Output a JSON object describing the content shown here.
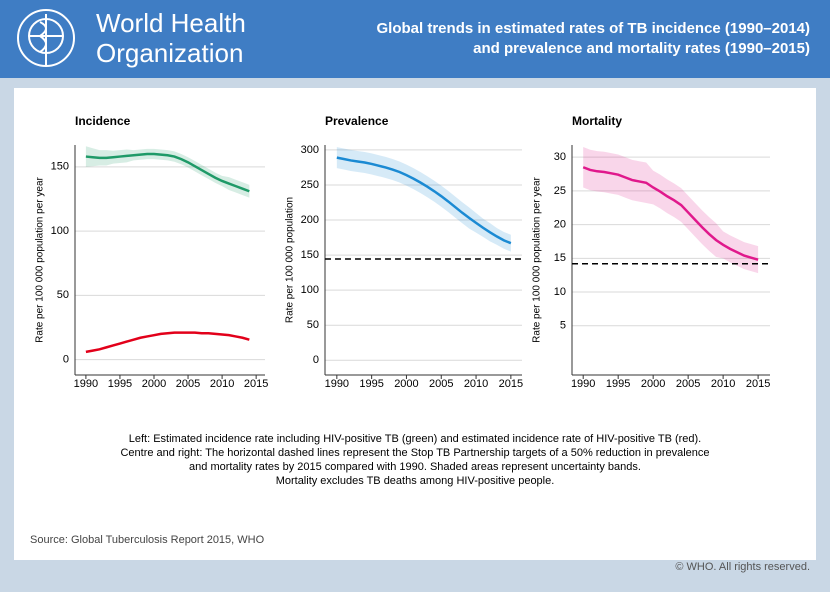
{
  "header": {
    "logo": [
      "World Health",
      "Organization"
    ],
    "title": [
      "Global trends in estimated rates of TB incidence (1990–2014)",
      "and prevalence and mortality rates (1990–2015)"
    ]
  },
  "chart_data": [
    {
      "type": "line",
      "title": "Incidence",
      "y_label": "Rate per 100 000 population per year",
      "x": [
        1990,
        1991,
        1992,
        1993,
        1994,
        1995,
        1996,
        1997,
        1998,
        1999,
        2000,
        2001,
        2002,
        2003,
        2004,
        2005,
        2006,
        2007,
        2008,
        2009,
        2010,
        2011,
        2012,
        2013,
        2014
      ],
      "xlim": [
        1988.4,
        2016.3
      ],
      "xticks": [
        1990,
        1995,
        2000,
        2005,
        2010,
        2015
      ],
      "ylim": [
        -12,
        167
      ],
      "yticks": [
        0,
        50,
        100,
        150
      ],
      "grid": true,
      "series": [
        {
          "color": "#1f9a68",
          "values": [
            158,
            157.5,
            157,
            157,
            157.5,
            158,
            158.5,
            159,
            159.5,
            160,
            160,
            159.5,
            159,
            158,
            156,
            153.5,
            150.5,
            147.5,
            144.5,
            141.5,
            139,
            137,
            135,
            133,
            131
          ],
          "upper": [
            166,
            164.5,
            163,
            163,
            162.5,
            163,
            163.5,
            163,
            163.5,
            164,
            164,
            163.5,
            163,
            162,
            160,
            157.5,
            154.5,
            151.5,
            148.5,
            145.5,
            143,
            142,
            140,
            138,
            136
          ],
          "lower": [
            150,
            150.5,
            151,
            151,
            152.5,
            153,
            153.5,
            155,
            155.5,
            156,
            156,
            155.5,
            155,
            154,
            152,
            149.5,
            146.5,
            143.5,
            140.5,
            137.5,
            135,
            132,
            130,
            128,
            126
          ]
        },
        {
          "color": "#e2001a",
          "values": [
            6,
            7,
            8,
            9.5,
            11,
            12.5,
            14,
            15.5,
            17,
            18,
            19,
            20,
            20.5,
            21,
            21,
            21,
            21,
            20.5,
            20.5,
            20,
            19.5,
            19,
            18,
            17,
            15.5
          ]
        }
      ]
    },
    {
      "type": "line",
      "title": "Prevalence",
      "y_label": "Rate per 100 000 population",
      "x": [
        1990,
        1991,
        1992,
        1993,
        1994,
        1995,
        1996,
        1997,
        1998,
        1999,
        2000,
        2001,
        2002,
        2003,
        2004,
        2005,
        2006,
        2007,
        2008,
        2009,
        2010,
        2011,
        2012,
        2013,
        2014,
        2015
      ],
      "xlim": [
        1988.3,
        2016.6
      ],
      "xticks": [
        1990,
        1995,
        2000,
        2005,
        2010,
        2015
      ],
      "ylim": [
        -21,
        307
      ],
      "yticks": [
        0,
        50,
        100,
        150,
        200,
        250,
        300
      ],
      "grid": true,
      "target": 144.5,
      "series": [
        {
          "color": "#1b8ad3",
          "values": [
            289,
            287,
            285,
            283.5,
            282,
            280,
            277.5,
            275,
            272,
            268.5,
            264,
            259,
            253.5,
            247.5,
            241,
            234,
            226.5,
            218.5,
            210.5,
            203,
            196,
            189,
            182.5,
            176.5,
            171,
            167
          ],
          "upper": [
            304,
            302,
            300,
            298.5,
            297,
            295,
            292.5,
            290,
            287,
            283.5,
            279,
            274,
            268.5,
            262.5,
            256,
            249,
            241.5,
            233.5,
            225.5,
            218,
            210,
            202,
            195.5,
            188.5,
            183,
            179
          ],
          "lower": [
            274,
            272,
            270,
            268.5,
            267,
            265,
            262.5,
            260,
            257,
            253.5,
            249,
            244,
            238.5,
            232.5,
            226,
            219,
            211.5,
            203.5,
            195.5,
            188,
            182,
            176,
            169.5,
            164.5,
            159,
            155
          ]
        }
      ]
    },
    {
      "type": "line",
      "title": "Mortality",
      "y_label": "Rate per 100 000 population per year",
      "x": [
        1990,
        1991,
        1992,
        1993,
        1994,
        1995,
        1996,
        1997,
        1998,
        1999,
        2000,
        2001,
        2002,
        2003,
        2004,
        2005,
        2006,
        2007,
        2008,
        2009,
        2010,
        2011,
        2012,
        2013,
        2014,
        2015
      ],
      "xlim": [
        1988.4,
        2016.7
      ],
      "xticks": [
        1990,
        1995,
        2000,
        2005,
        2010,
        2015
      ],
      "ylim": [
        -2.3,
        31.8
      ],
      "yticks": [
        5,
        10,
        15,
        20,
        25,
        30
      ],
      "grid": true,
      "target": 14.2,
      "series": [
        {
          "color": "#e0198c",
          "values": [
            28.5,
            28.1,
            27.9,
            27.8,
            27.6,
            27.4,
            27.0,
            26.6,
            26.4,
            26.2,
            25.5,
            24.9,
            24.2,
            23.6,
            22.9,
            21.8,
            20.7,
            19.6,
            18.6,
            17.7,
            17.0,
            16.4,
            15.9,
            15.4,
            15.1,
            14.8
          ],
          "upper": [
            31.5,
            31.1,
            30.9,
            30.8,
            30.6,
            30.4,
            30,
            29.6,
            29.4,
            29.2,
            28,
            27.4,
            26.7,
            26.1,
            25.4,
            24.3,
            23.2,
            22.1,
            21.1,
            20.2,
            19,
            18.4,
            17.9,
            17.4,
            17.1,
            16.8
          ],
          "lower": [
            25.5,
            25.1,
            24.9,
            24.8,
            24.6,
            24.4,
            24,
            23.6,
            23.4,
            23.2,
            23,
            22.4,
            21.7,
            21.1,
            20.4,
            19.3,
            18.2,
            17.1,
            16.1,
            15.2,
            15,
            14.4,
            13.9,
            13.4,
            13.1,
            12.8
          ]
        }
      ]
    }
  ],
  "caption": [
    "Left: Estimated incidence rate including HIV-positive TB (green) and estimated incidence rate of HIV-positive TB (red).",
    "Centre and right: The horizontal dashed lines represent the Stop TB Partnership targets of a 50% reduction in prevalence",
    "and mortality rates by 2015 compared with 1990. Shaded areas represent uncertainty bands.",
    "Mortality excludes TB deaths among HIV-positive people."
  ],
  "source": "Source: Global Tuberculosis Report 2015, WHO",
  "copyright": "© WHO. All rights reserved."
}
